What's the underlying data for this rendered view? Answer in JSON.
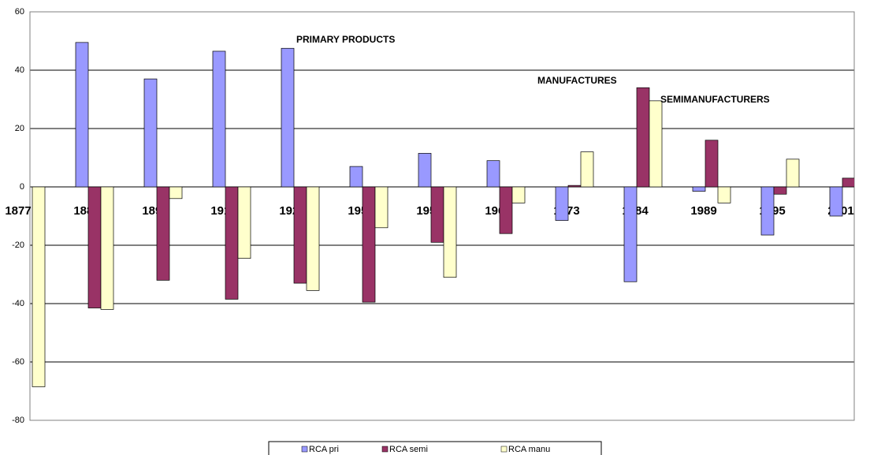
{
  "chart_data": {
    "type": "bar",
    "categories": [
      "1877",
      "1889",
      "1897",
      "1913",
      "1926",
      "1951",
      "1959",
      "1967",
      "1973",
      "1984",
      "1989",
      "1995",
      "2001"
    ],
    "series": [
      {
        "name": "RCA pri",
        "color": "#9999ff",
        "values": [
          null,
          49.5,
          37,
          46.5,
          47.5,
          7,
          11.5,
          9,
          -11.5,
          -32.5,
          -1.5,
          -16.5,
          -10
        ]
      },
      {
        "name": "RCA semi",
        "color": "#993366",
        "values": [
          null,
          -41.5,
          -32,
          -38.5,
          -33,
          -39.5,
          -19,
          -16,
          0.5,
          34,
          16,
          -2.5,
          3
        ]
      },
      {
        "name": "RCA manu",
        "color": "#ffffcc",
        "values": [
          -68.5,
          -42,
          -4,
          -24.5,
          -35.5,
          -14,
          -31,
          -5.5,
          12,
          29.5,
          -5.5,
          9.5,
          null
        ]
      }
    ],
    "annotations": [
      "PRIMARY PRODUCTS",
      "MANUFACTURES",
      "SEMIMANUFACTURERS"
    ],
    "ylim": [
      -80,
      60
    ],
    "yticks": [
      -80,
      -60,
      -40,
      -20,
      0,
      20,
      40,
      60
    ],
    "grid": true,
    "legend": "bottom"
  }
}
